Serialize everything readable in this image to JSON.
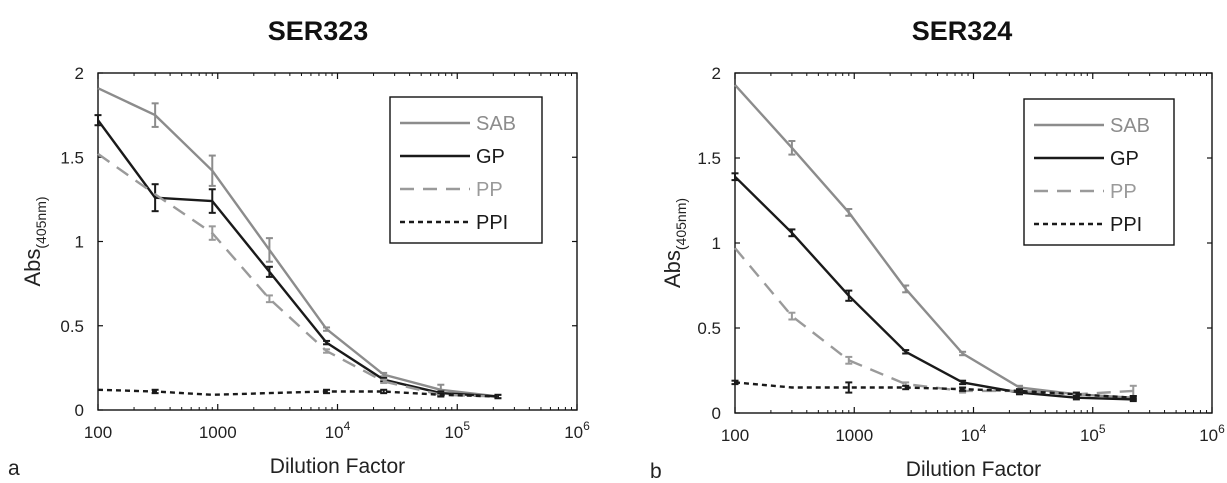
{
  "chart_data": [
    {
      "type": "line",
      "panel_label": "a",
      "title": "SER323",
      "xlabel": "Dilution Factor",
      "ylabel": "Abs",
      "ylabel_sub": "(405nm)",
      "x_scale": "log",
      "xlim": [
        100,
        1000000
      ],
      "ylim": [
        0,
        2
      ],
      "xticks": [
        100,
        1000,
        10000,
        100000,
        1000000
      ],
      "xtick_labels": [
        "100",
        "1000",
        "10^4",
        "10^5",
        "10^6"
      ],
      "yticks": [
        0,
        0.5,
        1,
        1.5,
        2
      ],
      "ytick_labels": [
        "0",
        "0.5",
        "1",
        "1.5",
        "2"
      ],
      "legend_position": "top-right",
      "grid": false,
      "x": [
        100,
        300,
        900,
        2700,
        8100,
        24300,
        72900,
        218700
      ],
      "series": [
        {
          "name": "SAB",
          "color": "#8c8c8c",
          "dash": "solid",
          "values": [
            1.91,
            1.75,
            1.42,
            0.95,
            0.48,
            0.21,
            0.12,
            0.08
          ],
          "errors": [
            0.0,
            0.07,
            0.09,
            0.07,
            0.01,
            0.01,
            0.03,
            0.01
          ]
        },
        {
          "name": "GP",
          "color": "#1a1a1a",
          "dash": "solid",
          "values": [
            1.72,
            1.26,
            1.24,
            0.82,
            0.4,
            0.18,
            0.1,
            0.08
          ],
          "errors": [
            0.03,
            0.08,
            0.07,
            0.03,
            0.01,
            0.01,
            0.01,
            0.01
          ]
        },
        {
          "name": "PP",
          "color": "#9a9a9a",
          "dash": "dashed",
          "values": [
            1.52,
            1.28,
            1.05,
            0.66,
            0.35,
            0.17,
            0.09,
            0.08
          ],
          "errors": [
            0.0,
            0.0,
            0.04,
            0.02,
            0.01,
            0.01,
            0.01,
            0.0
          ]
        },
        {
          "name": "PPI",
          "color": "#1a1a1a",
          "dash": "dotted",
          "values": [
            0.12,
            0.11,
            0.09,
            0.1,
            0.11,
            0.11,
            0.09,
            0.08
          ],
          "errors": [
            0.0,
            0.01,
            0.0,
            0.0,
            0.01,
            0.01,
            0.01,
            0.0
          ]
        }
      ]
    },
    {
      "type": "line",
      "panel_label": "b",
      "title": "SER324",
      "xlabel": "Dilution Factor",
      "ylabel": "Abs",
      "ylabel_sub": "(405nm)",
      "x_scale": "log",
      "xlim": [
        100,
        1000000
      ],
      "ylim": [
        0,
        2
      ],
      "xticks": [
        100,
        1000,
        10000,
        100000,
        1000000
      ],
      "xtick_labels": [
        "100",
        "1000",
        "10^4",
        "10^5",
        "10^6"
      ],
      "yticks": [
        0,
        0.5,
        1,
        1.5,
        2
      ],
      "ytick_labels": [
        "0",
        "0.5",
        "1",
        "1.5",
        "2"
      ],
      "legend_position": "top-right",
      "grid": false,
      "x": [
        100,
        300,
        900,
        2700,
        8100,
        24300,
        72900,
        218700
      ],
      "series": [
        {
          "name": "SAB",
          "color": "#8c8c8c",
          "dash": "solid",
          "values": [
            1.93,
            1.56,
            1.18,
            0.73,
            0.35,
            0.15,
            0.11,
            0.09
          ],
          "errors": [
            0.0,
            0.04,
            0.02,
            0.02,
            0.01,
            0.01,
            0.01,
            0.01
          ]
        },
        {
          "name": "GP",
          "color": "#1a1a1a",
          "dash": "solid",
          "values": [
            1.39,
            1.06,
            0.69,
            0.36,
            0.18,
            0.12,
            0.09,
            0.08
          ],
          "errors": [
            0.02,
            0.02,
            0.03,
            0.01,
            0.01,
            0.01,
            0.01,
            0.01
          ]
        },
        {
          "name": "PP",
          "color": "#9a9a9a",
          "dash": "dashed",
          "values": [
            0.97,
            0.57,
            0.31,
            0.17,
            0.13,
            0.13,
            0.11,
            0.13
          ],
          "errors": [
            0.0,
            0.02,
            0.02,
            0.01,
            0.01,
            0.01,
            0.01,
            0.03
          ]
        },
        {
          "name": "PPI",
          "color": "#1a1a1a",
          "dash": "dotted",
          "values": [
            0.18,
            0.15,
            0.15,
            0.15,
            0.14,
            0.13,
            0.11,
            0.09
          ],
          "errors": [
            0.01,
            0.0,
            0.03,
            0.01,
            0.01,
            0.01,
            0.01,
            0.01
          ]
        }
      ]
    }
  ]
}
